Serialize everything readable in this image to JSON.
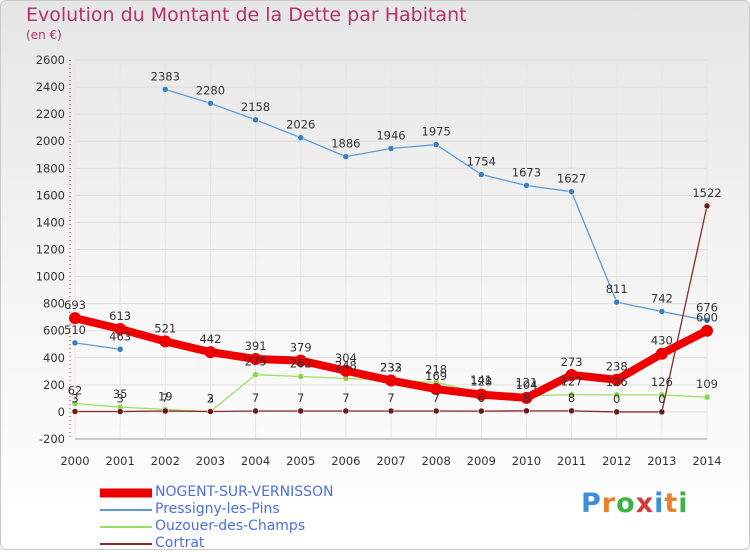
{
  "header": {
    "title": "Evolution du Montant de la Dette par Habitant",
    "subtitle": "(en €)"
  },
  "brand": {
    "text": "Proxiti",
    "letter_colors": [
      "#3a8fd6",
      "#e8812a",
      "#3fb34a",
      "#d33b3b",
      "#3a8fd6",
      "#e8812a",
      "#3fb34a"
    ]
  },
  "chart_data": {
    "type": "line",
    "title": "Evolution du Montant de la Dette par Habitant",
    "ylabel": "(en €)",
    "x": [
      "2000",
      "2001",
      "2002",
      "2003",
      "2004",
      "2005",
      "2006",
      "2007",
      "2008",
      "2009",
      "2010",
      "2011",
      "2012",
      "2013",
      "2014"
    ],
    "ylim": [
      -200,
      2600
    ],
    "yticks": [
      -200,
      0,
      200,
      400,
      600,
      800,
      1000,
      1200,
      1400,
      1600,
      1800,
      2000,
      2200,
      2400,
      2600
    ],
    "grid": true,
    "legend_position": "bottom-left",
    "series": [
      {
        "name": "NOGENT-SUR-VERNISSON",
        "color": "#ee0000",
        "marker_color": "#ee0000",
        "width": 8,
        "values": [
          693,
          613,
          521,
          442,
          391,
          379,
          304,
          232,
          169,
          128,
          104,
          273,
          238,
          430,
          600
        ],
        "labels": [
          "693",
          "613",
          "521",
          "442",
          "391",
          "379",
          "304",
          "232",
          "169",
          "128",
          "104",
          "273",
          "238",
          "430",
          "600"
        ]
      },
      {
        "name": "Pressigny-les-Pins",
        "color": "#5b9bd5",
        "marker_color": "#3a7fc0",
        "width": 1.3,
        "segments": [
          [
            0,
            1
          ],
          [
            2,
            14
          ]
        ],
        "values": [
          510,
          463,
          2383,
          2280,
          2158,
          2026,
          1886,
          1946,
          1975,
          1754,
          1673,
          1627,
          811,
          742,
          676
        ],
        "labels": [
          "510",
          "463",
          "2383",
          "2280",
          "2158",
          "2026",
          "1886",
          "1946",
          "1975",
          "1754",
          "1673",
          "1627",
          "811",
          "742",
          "676"
        ]
      },
      {
        "name": "Ouzouer-des-Champs",
        "color": "#99e066",
        "marker_color": "#88d44a",
        "width": 1.3,
        "values": [
          62,
          35,
          19,
          2,
          275,
          262,
          248,
          233,
          218,
          141,
          121,
          127,
          126,
          126,
          109
        ],
        "labels": [
          "62",
          "35",
          "19",
          "2",
          "275",
          "262",
          "248",
          "233",
          "218",
          "141",
          "121",
          "127",
          "126",
          "126",
          "109"
        ]
      },
      {
        "name": "Cortrat",
        "color": "#8b2a2a",
        "marker_color": "#6a1a1a",
        "width": 1.3,
        "values": [
          3,
          3,
          7,
          3,
          7,
          7,
          7,
          7,
          7,
          6,
          8,
          8,
          0,
          0,
          1522
        ],
        "labels": [
          "3",
          "3",
          "7",
          "3",
          "7",
          "7",
          "7",
          "7",
          "7",
          "6",
          "8",
          "8",
          "0",
          "0",
          "1522"
        ]
      }
    ]
  }
}
